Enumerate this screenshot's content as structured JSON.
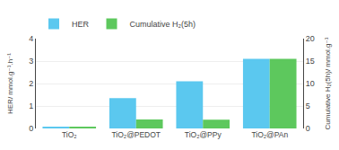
{
  "chart_data": {
    "type": "bar",
    "categories": [
      "TiO₂",
      "TiO₂@PEDOT",
      "TiO₂@PPy",
      "TiO₂@PAn"
    ],
    "series": [
      {
        "name": "HER",
        "color": "#5bc8ef",
        "values": [
          0.08,
          1.35,
          2.1,
          3.1
        ]
      },
      {
        "name": "Cumulative H₂(5h)",
        "color": "#5dc85d",
        "values": [
          0.4,
          2.0,
          1.95,
          15.5
        ],
        "axis": "y2"
      }
    ],
    "ylabel": "HER/ mmol.g⁻¹.h⁻¹",
    "y2label": "Cumulative H₂(5h)/ mmol.g⁻¹",
    "ylim": [
      0,
      4
    ],
    "yticks": [
      0,
      1,
      2,
      3,
      4
    ],
    "y2lim": [
      0,
      20
    ],
    "y2ticks": [
      0,
      5,
      10,
      15,
      20
    ],
    "grid": true,
    "legend": "upper left"
  }
}
